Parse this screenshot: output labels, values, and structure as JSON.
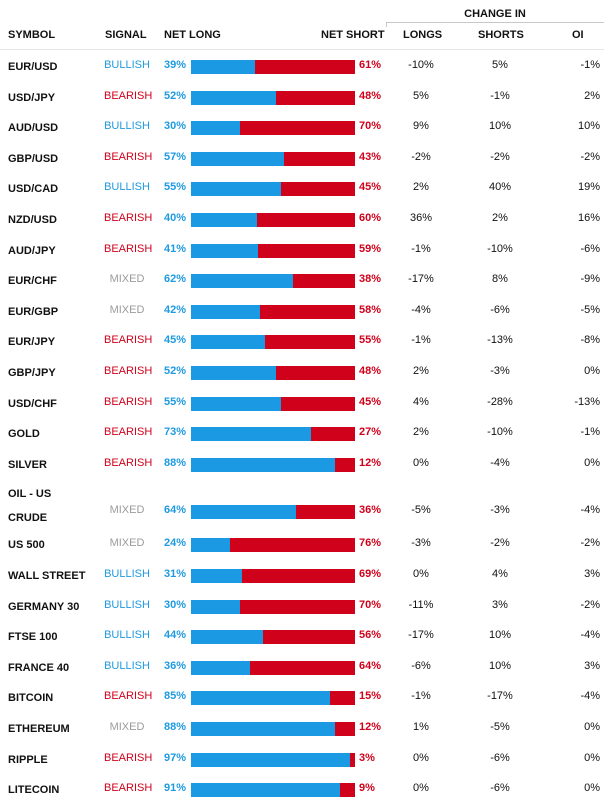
{
  "header": {
    "change_in": "CHANGE IN",
    "symbol": "SYMBOL",
    "signal": "SIGNAL",
    "net_long": "NET LONG",
    "net_short": "NET SHORT",
    "longs": "LONGS",
    "shorts": "SHORTS",
    "oi": "OI"
  },
  "colors": {
    "long_blue": "#1b9ae3",
    "short_red": "#d0021b",
    "bullish": "#1f9ae0",
    "bearish": "#d0021b",
    "mixed": "#9b9b9b"
  },
  "rows": [
    {
      "symbol": "EUR/USD",
      "signal": "BULLISH",
      "net_long": "39%",
      "net_short": "61%",
      "long_pct": 39,
      "longs": "-10%",
      "shorts": "5%",
      "oi": "-1%"
    },
    {
      "symbol": "USD/JPY",
      "signal": "BEARISH",
      "net_long": "52%",
      "net_short": "48%",
      "long_pct": 52,
      "longs": "5%",
      "shorts": "-1%",
      "oi": "2%"
    },
    {
      "symbol": "AUD/USD",
      "signal": "BULLISH",
      "net_long": "30%",
      "net_short": "70%",
      "long_pct": 30,
      "longs": "9%",
      "shorts": "10%",
      "oi": "10%"
    },
    {
      "symbol": "GBP/USD",
      "signal": "BEARISH",
      "net_long": "57%",
      "net_short": "43%",
      "long_pct": 57,
      "longs": "-2%",
      "shorts": "-2%",
      "oi": "-2%"
    },
    {
      "symbol": "USD/CAD",
      "signal": "BULLISH",
      "net_long": "55%",
      "net_short": "45%",
      "long_pct": 55,
      "longs": "2%",
      "shorts": "40%",
      "oi": "19%"
    },
    {
      "symbol": "NZD/USD",
      "signal": "BEARISH",
      "net_long": "40%",
      "net_short": "60%",
      "long_pct": 40,
      "longs": "36%",
      "shorts": "2%",
      "oi": "16%"
    },
    {
      "symbol": "AUD/JPY",
      "signal": "BEARISH",
      "net_long": "41%",
      "net_short": "59%",
      "long_pct": 41,
      "longs": "-1%",
      "shorts": "-10%",
      "oi": "-6%"
    },
    {
      "symbol": "EUR/CHF",
      "signal": "MIXED",
      "net_long": "62%",
      "net_short": "38%",
      "long_pct": 62,
      "longs": "-17%",
      "shorts": "8%",
      "oi": "-9%"
    },
    {
      "symbol": "EUR/GBP",
      "signal": "MIXED",
      "net_long": "42%",
      "net_short": "58%",
      "long_pct": 42,
      "longs": "-4%",
      "shorts": "-6%",
      "oi": "-5%"
    },
    {
      "symbol": "EUR/JPY",
      "signal": "BEARISH",
      "net_long": "45%",
      "net_short": "55%",
      "long_pct": 45,
      "longs": "-1%",
      "shorts": "-13%",
      "oi": "-8%"
    },
    {
      "symbol": "GBP/JPY",
      "signal": "BEARISH",
      "net_long": "52%",
      "net_short": "48%",
      "long_pct": 52,
      "longs": "2%",
      "shorts": "-3%",
      "oi": "0%"
    },
    {
      "symbol": "USD/CHF",
      "signal": "BEARISH",
      "net_long": "55%",
      "net_short": "45%",
      "long_pct": 55,
      "longs": "4%",
      "shorts": "-28%",
      "oi": "-13%"
    },
    {
      "symbol": "GOLD",
      "signal": "BEARISH",
      "net_long": "73%",
      "net_short": "27%",
      "long_pct": 73,
      "longs": "2%",
      "shorts": "-10%",
      "oi": "-1%"
    },
    {
      "symbol": "SILVER",
      "signal": "BEARISH",
      "net_long": "88%",
      "net_short": "12%",
      "long_pct": 88,
      "longs": "0%",
      "shorts": "-4%",
      "oi": "0%"
    },
    {
      "symbol": "OIL - US CRUDE",
      "symbol_line1": "OIL - US",
      "symbol_line2": "CRUDE",
      "signal": "MIXED",
      "net_long": "64%",
      "net_short": "36%",
      "long_pct": 64,
      "longs": "-5%",
      "shorts": "-3%",
      "oi": "-4%"
    },
    {
      "symbol": "US 500",
      "signal": "MIXED",
      "net_long": "24%",
      "net_short": "76%",
      "long_pct": 24,
      "longs": "-3%",
      "shorts": "-2%",
      "oi": "-2%"
    },
    {
      "symbol": "WALL STREET",
      "signal": "BULLISH",
      "net_long": "31%",
      "net_short": "69%",
      "long_pct": 31,
      "longs": "0%",
      "shorts": "4%",
      "oi": "3%"
    },
    {
      "symbol": "GERMANY 30",
      "signal": "BULLISH",
      "net_long": "30%",
      "net_short": "70%",
      "long_pct": 30,
      "longs": "-11%",
      "shorts": "3%",
      "oi": "-2%"
    },
    {
      "symbol": "FTSE 100",
      "signal": "BULLISH",
      "net_long": "44%",
      "net_short": "56%",
      "long_pct": 44,
      "longs": "-17%",
      "shorts": "10%",
      "oi": "-4%"
    },
    {
      "symbol": "FRANCE 40",
      "signal": "BULLISH",
      "net_long": "36%",
      "net_short": "64%",
      "long_pct": 36,
      "longs": "-6%",
      "shorts": "10%",
      "oi": "3%"
    },
    {
      "symbol": "BITCOIN",
      "signal": "BEARISH",
      "net_long": "85%",
      "net_short": "15%",
      "long_pct": 85,
      "longs": "-1%",
      "shorts": "-17%",
      "oi": "-4%"
    },
    {
      "symbol": "ETHEREUM",
      "signal": "MIXED",
      "net_long": "88%",
      "net_short": "12%",
      "long_pct": 88,
      "longs": "1%",
      "shorts": "-5%",
      "oi": "0%"
    },
    {
      "symbol": "RIPPLE",
      "signal": "BEARISH",
      "net_long": "97%",
      "net_short": "3%",
      "long_pct": 97,
      "longs": "0%",
      "shorts": "-6%",
      "oi": "0%"
    },
    {
      "symbol": "LITECOIN",
      "signal": "BEARISH",
      "net_long": "91%",
      "net_short": "9%",
      "long_pct": 91,
      "longs": "0%",
      "shorts": "-6%",
      "oi": "0%"
    }
  ]
}
